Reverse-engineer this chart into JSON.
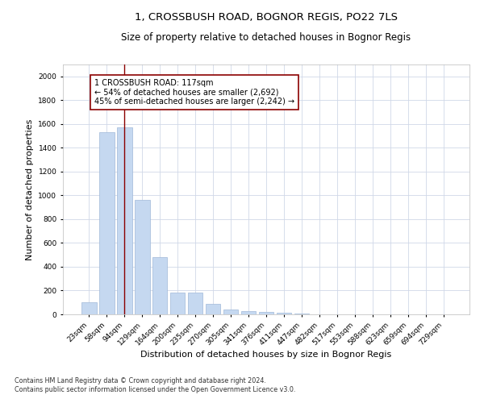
{
  "title_line1": "1, CROSSBUSH ROAD, BOGNOR REGIS, PO22 7LS",
  "title_line2": "Size of property relative to detached houses in Bognor Regis",
  "xlabel": "Distribution of detached houses by size in Bognor Regis",
  "ylabel": "Number of detached properties",
  "categories": [
    "23sqm",
    "58sqm",
    "94sqm",
    "129sqm",
    "164sqm",
    "200sqm",
    "235sqm",
    "270sqm",
    "305sqm",
    "341sqm",
    "376sqm",
    "411sqm",
    "447sqm",
    "482sqm",
    "517sqm",
    "553sqm",
    "588sqm",
    "623sqm",
    "659sqm",
    "694sqm",
    "729sqm"
  ],
  "values": [
    100,
    1530,
    1570,
    960,
    480,
    185,
    185,
    90,
    40,
    30,
    20,
    15,
    5,
    3,
    2,
    1,
    1,
    0,
    0,
    0,
    0
  ],
  "bar_color": "#c5d8f0",
  "bar_edge_color": "#a0b8d8",
  "highlight_bar_index": 2,
  "highlight_line_color": "#8b0000",
  "annotation_box_color": "#ffffff",
  "annotation_box_edge": "#8b0000",
  "annotation_text_line1": "1 CROSSBUSH ROAD: 117sqm",
  "annotation_text_line2": "← 54% of detached houses are smaller (2,692)",
  "annotation_text_line3": "45% of semi-detached houses are larger (2,242) →",
  "ylim": [
    0,
    2100
  ],
  "yticks": [
    0,
    200,
    400,
    600,
    800,
    1000,
    1200,
    1400,
    1600,
    1800,
    2000
  ],
  "footnote_line1": "Contains HM Land Registry data © Crown copyright and database right 2024.",
  "footnote_line2": "Contains public sector information licensed under the Open Government Licence v3.0.",
  "bg_color": "#ffffff",
  "grid_color": "#d0d8e8",
  "title_fontsize": 9.5,
  "subtitle_fontsize": 8.5,
  "tick_fontsize": 6.5,
  "ylabel_fontsize": 8,
  "xlabel_fontsize": 8,
  "footnote_fontsize": 5.8,
  "annotation_fontsize": 7.0
}
